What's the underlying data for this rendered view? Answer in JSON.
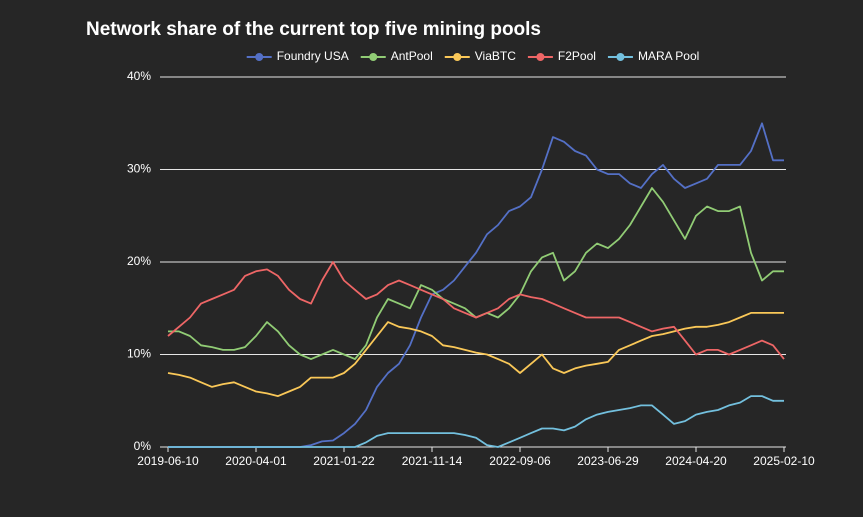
{
  "chart_data": {
    "type": "line",
    "title": "Network share of the current top five mining pools",
    "categories": [
      "2019-06-10",
      null,
      null,
      null,
      null,
      null,
      null,
      null,
      "2020-04-01",
      null,
      null,
      null,
      null,
      null,
      null,
      null,
      "2021-01-22",
      null,
      null,
      null,
      null,
      null,
      null,
      null,
      "2021-11-14",
      null,
      null,
      null,
      null,
      null,
      null,
      null,
      "2022-09-06",
      null,
      null,
      null,
      null,
      null,
      null,
      null,
      "2023-06-29",
      null,
      null,
      null,
      null,
      null,
      null,
      null,
      "2024-04-20",
      null,
      null,
      null,
      null,
      null,
      null,
      null,
      "2025-02-10"
    ],
    "series": [
      {
        "name": "Foundry USA",
        "color": "#5470c6",
        "values": [
          0,
          0,
          0,
          0,
          0,
          0,
          0,
          0,
          0,
          0,
          0,
          0,
          0,
          0.2,
          0.6,
          0.7,
          1.5,
          2.5,
          4,
          6.5,
          8,
          9,
          11,
          14,
          16.5,
          17,
          18,
          19.5,
          21,
          23,
          24,
          25.5,
          26,
          27,
          30,
          33.5,
          33,
          32,
          31.5,
          30,
          29.5,
          29.5,
          28.5,
          28,
          29.5,
          30.5,
          29,
          28,
          28.5,
          29,
          30.5,
          30.5,
          30.5,
          32,
          35,
          31,
          31
        ]
      },
      {
        "name": "AntPool",
        "color": "#91cc75",
        "values": [
          12.5,
          12.5,
          12,
          11,
          10.8,
          10.5,
          10.5,
          10.8,
          12,
          13.5,
          12.5,
          11,
          10,
          9.5,
          10,
          10.5,
          10,
          9.5,
          11,
          14,
          16,
          15.5,
          15,
          17.5,
          17,
          16,
          15.5,
          15,
          14,
          14.5,
          14,
          15,
          16.5,
          19,
          20.5,
          21,
          18,
          19,
          21,
          22,
          21.5,
          22.5,
          24,
          26,
          28,
          26.5,
          24.5,
          22.5,
          25,
          26,
          25.5,
          25.5,
          26,
          21,
          18,
          19,
          19
        ]
      },
      {
        "name": "ViaBTC",
        "color": "#fac858",
        "values": [
          8,
          7.8,
          7.5,
          7,
          6.5,
          6.8,
          7,
          6.5,
          6,
          5.8,
          5.5,
          6,
          6.5,
          7.5,
          7.5,
          7.5,
          8,
          9,
          10.5,
          12,
          13.5,
          13,
          12.8,
          12.5,
          12,
          11,
          10.8,
          10.5,
          10.2,
          10,
          9.5,
          9,
          8,
          9,
          10,
          8.5,
          8,
          8.5,
          8.8,
          9,
          9.2,
          10.5,
          11,
          11.5,
          12,
          12.2,
          12.5,
          12.8,
          13,
          13,
          13.2,
          13.5,
          14,
          14.5,
          14.5,
          14.5,
          14.5
        ]
      },
      {
        "name": "F2Pool",
        "color": "#ee6666",
        "values": [
          12,
          13,
          14,
          15.5,
          16,
          16.5,
          17,
          18.5,
          19,
          19.2,
          18.5,
          17,
          16,
          15.5,
          18,
          20,
          18,
          17,
          16,
          16.5,
          17.5,
          18,
          17.5,
          17,
          16.5,
          16,
          15,
          14.5,
          14,
          14.5,
          15,
          16,
          16.5,
          16.2,
          16,
          15.5,
          15,
          14.5,
          14,
          14,
          14,
          14,
          13.5,
          13,
          12.5,
          12.8,
          13,
          11.5,
          10,
          10.5,
          10.5,
          10,
          10.5,
          11,
          11.5,
          11,
          9.5
        ]
      },
      {
        "name": "MARA Pool",
        "color": "#73c0de",
        "values": [
          0,
          0,
          0,
          0,
          0,
          0,
          0,
          0,
          0,
          0,
          0,
          0,
          0,
          0,
          0,
          0,
          0,
          0,
          0.5,
          1.2,
          1.5,
          1.5,
          1.5,
          1.5,
          1.5,
          1.5,
          1.5,
          1.3,
          1,
          0.2,
          0,
          0.5,
          1,
          1.5,
          2,
          2,
          1.8,
          2.2,
          3,
          3.5,
          3.8,
          4,
          4.2,
          4.5,
          4.5,
          3.5,
          2.5,
          2.8,
          3.5,
          3.8,
          4,
          4.5,
          4.8,
          5.5,
          5.5,
          5,
          5
        ]
      }
    ],
    "ylim": [
      0,
      40
    ],
    "yticks": [
      {
        "value": 0,
        "label": "0%"
      },
      {
        "value": 10,
        "label": "10%"
      },
      {
        "value": 20,
        "label": "20%"
      },
      {
        "value": 30,
        "label": "30%"
      },
      {
        "value": 40,
        "label": "40%"
      }
    ],
    "grid": true
  }
}
